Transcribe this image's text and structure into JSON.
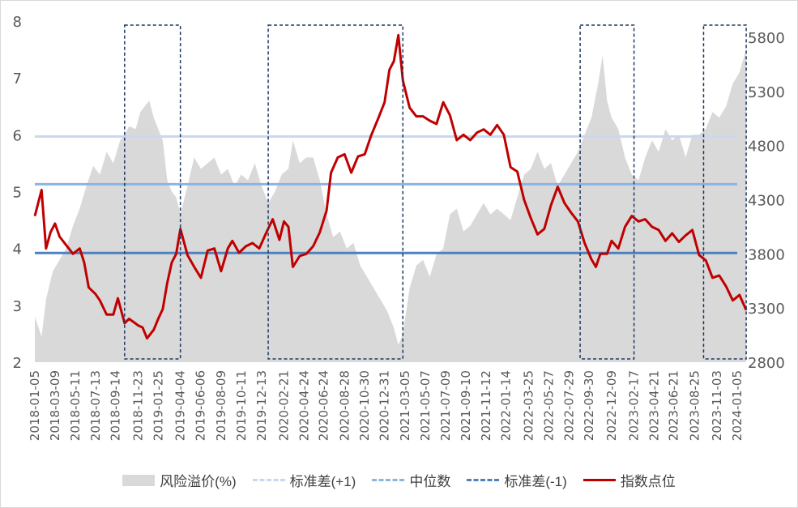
{
  "colors": {
    "area": "#d9d9d9",
    "std_plus": "#c6d9f1",
    "median": "#8db4e2",
    "std_minus": "#4f81bd",
    "index_line": "#c00000",
    "box": "#1f3864",
    "axis_text": "#595959"
  },
  "chart_data": {
    "type": "line",
    "left_axis": {
      "ylim": [
        2,
        8
      ],
      "ticks": [
        "2",
        "3",
        "4",
        "5",
        "6",
        "7",
        "8"
      ]
    },
    "right_axis": {
      "ylim": [
        2800,
        5950
      ],
      "ticks": [
        "2800",
        "3300",
        "3800",
        "4300",
        "4800",
        "5300",
        "5800"
      ]
    },
    "x_ticks": [
      "2018-01-05",
      "2018-03-09",
      "2018-05-11",
      "2018-07-13",
      "2018-09-14",
      "2018-11-23",
      "2019-01-25",
      "2019-04-04",
      "2019-06-06",
      "2019-08-09",
      "2019-10-11",
      "2019-12-13",
      "2020-02-21",
      "2020-04-24",
      "2020-06-24",
      "2020-08-28",
      "2020-10-30",
      "2020-12-31",
      "2021-03-05",
      "2021-05-07",
      "2021-07-09",
      "2021-09-10",
      "2021-11-12",
      "2022-01-14",
      "2022-03-25",
      "2022-05-27",
      "2022-07-29",
      "2022-09-30",
      "2022-12-09",
      "2023-02-17",
      "2023-04-21",
      "2023-06-21",
      "2023-08-25",
      "2023-11-03",
      "2024-01-05"
    ],
    "horizontal_lines": [
      {
        "name": "标准差(+1)",
        "value": 5.97
      },
      {
        "name": "中位数",
        "value": 5.13
      },
      {
        "name": "标准差(-1)",
        "value": 3.92
      }
    ],
    "highlight_windows": [
      {
        "start": "2018-10-12",
        "end": "2019-04-04"
      },
      {
        "start": "2020-01-03",
        "end": "2021-02-26"
      },
      {
        "start": "2022-09-02",
        "end": "2023-02-17"
      },
      {
        "start": "2023-09-22",
        "end": "2024-02-02"
      }
    ],
    "series": [
      {
        "name": "风险溢价(%)",
        "axis": "left",
        "type": "area",
        "points": [
          [
            "2018-01-05",
            2.8
          ],
          [
            "2018-01-26",
            2.45
          ],
          [
            "2018-02-09",
            3.1
          ],
          [
            "2018-03-02",
            3.6
          ],
          [
            "2018-03-23",
            3.8
          ],
          [
            "2018-04-13",
            4.0
          ],
          [
            "2018-05-04",
            4.4
          ],
          [
            "2018-05-25",
            4.7
          ],
          [
            "2018-06-15",
            5.1
          ],
          [
            "2018-07-06",
            5.45
          ],
          [
            "2018-07-27",
            5.3
          ],
          [
            "2018-08-17",
            5.7
          ],
          [
            "2018-09-07",
            5.5
          ],
          [
            "2018-09-28",
            5.9
          ],
          [
            "2018-10-12",
            6.0
          ],
          [
            "2018-10-26",
            6.15
          ],
          [
            "2018-11-16",
            6.1
          ],
          [
            "2018-11-30",
            6.4
          ],
          [
            "2018-12-14",
            6.5
          ],
          [
            "2018-12-28",
            6.6
          ],
          [
            "2019-01-11",
            6.3
          ],
          [
            "2019-01-25",
            6.1
          ],
          [
            "2019-02-08",
            5.9
          ],
          [
            "2019-02-22",
            5.2
          ],
          [
            "2019-03-08",
            5.0
          ],
          [
            "2019-03-22",
            4.9
          ],
          [
            "2019-04-04",
            4.6
          ],
          [
            "2019-04-26",
            5.1
          ],
          [
            "2019-05-17",
            5.6
          ],
          [
            "2019-06-07",
            5.4
          ],
          [
            "2019-06-28",
            5.5
          ],
          [
            "2019-07-19",
            5.6
          ],
          [
            "2019-08-09",
            5.3
          ],
          [
            "2019-08-30",
            5.4
          ],
          [
            "2019-09-20",
            5.1
          ],
          [
            "2019-10-11",
            5.3
          ],
          [
            "2019-11-01",
            5.2
          ],
          [
            "2019-11-22",
            5.5
          ],
          [
            "2019-12-13",
            5.1
          ],
          [
            "2020-01-03",
            4.8
          ],
          [
            "2020-01-24",
            5.0
          ],
          [
            "2020-02-14",
            5.3
          ],
          [
            "2020-03-06",
            5.4
          ],
          [
            "2020-03-20",
            5.9
          ],
          [
            "2020-04-10",
            5.5
          ],
          [
            "2020-05-01",
            5.6
          ],
          [
            "2020-05-22",
            5.6
          ],
          [
            "2020-06-12",
            5.2
          ],
          [
            "2020-07-03",
            4.6
          ],
          [
            "2020-07-24",
            4.2
          ],
          [
            "2020-08-14",
            4.3
          ],
          [
            "2020-09-04",
            4.0
          ],
          [
            "2020-09-25",
            4.1
          ],
          [
            "2020-10-16",
            3.7
          ],
          [
            "2020-11-06",
            3.5
          ],
          [
            "2020-11-27",
            3.3
          ],
          [
            "2020-12-18",
            3.1
          ],
          [
            "2021-01-08",
            2.9
          ],
          [
            "2021-01-29",
            2.6
          ],
          [
            "2021-02-12",
            2.3
          ],
          [
            "2021-02-26",
            2.5
          ],
          [
            "2021-03-19",
            3.3
          ],
          [
            "2021-04-09",
            3.7
          ],
          [
            "2021-04-30",
            3.8
          ],
          [
            "2021-05-21",
            3.5
          ],
          [
            "2021-06-11",
            3.9
          ],
          [
            "2021-07-02",
            4.0
          ],
          [
            "2021-07-23",
            4.6
          ],
          [
            "2021-08-13",
            4.7
          ],
          [
            "2021-09-03",
            4.3
          ],
          [
            "2021-09-24",
            4.4
          ],
          [
            "2021-10-15",
            4.6
          ],
          [
            "2021-11-05",
            4.8
          ],
          [
            "2021-11-26",
            4.6
          ],
          [
            "2021-12-17",
            4.7
          ],
          [
            "2022-01-07",
            4.6
          ],
          [
            "2022-01-28",
            4.5
          ],
          [
            "2022-02-18",
            4.9
          ],
          [
            "2022-03-11",
            5.3
          ],
          [
            "2022-04-01",
            5.4
          ],
          [
            "2022-04-22",
            5.7
          ],
          [
            "2022-05-13",
            5.4
          ],
          [
            "2022-06-03",
            5.5
          ],
          [
            "2022-06-24",
            5.1
          ],
          [
            "2022-07-15",
            5.3
          ],
          [
            "2022-08-05",
            5.5
          ],
          [
            "2022-08-26",
            5.7
          ],
          [
            "2022-09-16",
            6.0
          ],
          [
            "2022-10-07",
            6.3
          ],
          [
            "2022-10-28",
            6.9
          ],
          [
            "2022-11-11",
            7.4
          ],
          [
            "2022-11-25",
            6.6
          ],
          [
            "2022-12-09",
            6.3
          ],
          [
            "2022-12-30",
            6.1
          ],
          [
            "2023-01-20",
            5.6
          ],
          [
            "2023-02-10",
            5.3
          ],
          [
            "2023-03-03",
            5.2
          ],
          [
            "2023-03-24",
            5.6
          ],
          [
            "2023-04-14",
            5.9
          ],
          [
            "2023-05-05",
            5.7
          ],
          [
            "2023-05-26",
            6.1
          ],
          [
            "2023-06-16",
            5.9
          ],
          [
            "2023-07-07",
            6.0
          ],
          [
            "2023-07-28",
            5.6
          ],
          [
            "2023-08-18",
            6.0
          ],
          [
            "2023-09-08",
            6.0
          ],
          [
            "2023-09-29",
            6.1
          ],
          [
            "2023-10-20",
            6.4
          ],
          [
            "2023-11-10",
            6.3
          ],
          [
            "2023-12-01",
            6.5
          ],
          [
            "2023-12-22",
            6.9
          ],
          [
            "2024-01-12",
            7.1
          ],
          [
            "2024-02-02",
            7.5
          ]
        ]
      },
      {
        "name": "指数点位",
        "axis": "right",
        "type": "line",
        "points": [
          [
            "2018-01-05",
            4150
          ],
          [
            "2018-01-26",
            4390
          ],
          [
            "2018-02-09",
            3850
          ],
          [
            "2018-02-23",
            4000
          ],
          [
            "2018-03-09",
            4080
          ],
          [
            "2018-03-23",
            3960
          ],
          [
            "2018-04-13",
            3880
          ],
          [
            "2018-05-04",
            3800
          ],
          [
            "2018-05-25",
            3850
          ],
          [
            "2018-06-08",
            3720
          ],
          [
            "2018-06-22",
            3490
          ],
          [
            "2018-07-13",
            3430
          ],
          [
            "2018-07-27",
            3370
          ],
          [
            "2018-08-17",
            3240
          ],
          [
            "2018-09-07",
            3240
          ],
          [
            "2018-09-21",
            3390
          ],
          [
            "2018-10-12",
            3160
          ],
          [
            "2018-10-26",
            3200
          ],
          [
            "2018-11-09",
            3170
          ],
          [
            "2018-11-23",
            3140
          ],
          [
            "2018-12-07",
            3120
          ],
          [
            "2018-12-21",
            3020
          ],
          [
            "2019-01-11",
            3100
          ],
          [
            "2019-01-25",
            3200
          ],
          [
            "2019-02-08",
            3290
          ],
          [
            "2019-02-22",
            3530
          ],
          [
            "2019-03-08",
            3720
          ],
          [
            "2019-03-22",
            3800
          ],
          [
            "2019-04-04",
            4030
          ],
          [
            "2019-04-26",
            3790
          ],
          [
            "2019-05-17",
            3680
          ],
          [
            "2019-06-07",
            3580
          ],
          [
            "2019-06-28",
            3830
          ],
          [
            "2019-07-19",
            3850
          ],
          [
            "2019-08-09",
            3640
          ],
          [
            "2019-08-30",
            3850
          ],
          [
            "2019-09-13",
            3920
          ],
          [
            "2019-10-04",
            3810
          ],
          [
            "2019-10-25",
            3870
          ],
          [
            "2019-11-15",
            3900
          ],
          [
            "2019-12-06",
            3850
          ],
          [
            "2019-12-27",
            3990
          ],
          [
            "2020-01-17",
            4120
          ],
          [
            "2020-02-07",
            3930
          ],
          [
            "2020-02-21",
            4100
          ],
          [
            "2020-03-06",
            4050
          ],
          [
            "2020-03-20",
            3680
          ],
          [
            "2020-04-10",
            3780
          ],
          [
            "2020-05-01",
            3800
          ],
          [
            "2020-05-22",
            3870
          ],
          [
            "2020-06-12",
            4000
          ],
          [
            "2020-07-03",
            4200
          ],
          [
            "2020-07-17",
            4550
          ],
          [
            "2020-08-07",
            4690
          ],
          [
            "2020-08-28",
            4720
          ],
          [
            "2020-09-18",
            4550
          ],
          [
            "2020-10-09",
            4700
          ],
          [
            "2020-10-30",
            4720
          ],
          [
            "2020-11-20",
            4900
          ],
          [
            "2020-12-11",
            5050
          ],
          [
            "2020-12-31",
            5200
          ],
          [
            "2021-01-15",
            5500
          ],
          [
            "2021-01-29",
            5580
          ],
          [
            "2021-02-12",
            5820
          ],
          [
            "2021-02-26",
            5400
          ],
          [
            "2021-03-19",
            5150
          ],
          [
            "2021-04-09",
            5070
          ],
          [
            "2021-04-30",
            5070
          ],
          [
            "2021-05-21",
            5030
          ],
          [
            "2021-06-11",
            5000
          ],
          [
            "2021-07-02",
            5200
          ],
          [
            "2021-07-23",
            5080
          ],
          [
            "2021-08-13",
            4850
          ],
          [
            "2021-09-03",
            4900
          ],
          [
            "2021-09-24",
            4850
          ],
          [
            "2021-10-15",
            4920
          ],
          [
            "2021-11-05",
            4950
          ],
          [
            "2021-11-26",
            4900
          ],
          [
            "2021-12-17",
            4990
          ],
          [
            "2022-01-07",
            4900
          ],
          [
            "2022-01-28",
            4600
          ],
          [
            "2022-02-18",
            4560
          ],
          [
            "2022-03-11",
            4300
          ],
          [
            "2022-04-01",
            4130
          ],
          [
            "2022-04-22",
            3980
          ],
          [
            "2022-05-13",
            4030
          ],
          [
            "2022-06-03",
            4250
          ],
          [
            "2022-06-24",
            4420
          ],
          [
            "2022-07-15",
            4270
          ],
          [
            "2022-08-05",
            4180
          ],
          [
            "2022-08-26",
            4100
          ],
          [
            "2022-09-16",
            3900
          ],
          [
            "2022-10-07",
            3750
          ],
          [
            "2022-10-21",
            3680
          ],
          [
            "2022-11-04",
            3800
          ],
          [
            "2022-11-25",
            3800
          ],
          [
            "2022-12-09",
            3920
          ],
          [
            "2022-12-30",
            3850
          ],
          [
            "2023-01-20",
            4050
          ],
          [
            "2023-02-10",
            4150
          ],
          [
            "2023-03-03",
            4100
          ],
          [
            "2023-03-24",
            4120
          ],
          [
            "2023-04-14",
            4050
          ],
          [
            "2023-05-05",
            4020
          ],
          [
            "2023-05-26",
            3920
          ],
          [
            "2023-06-16",
            3990
          ],
          [
            "2023-07-07",
            3910
          ],
          [
            "2023-07-28",
            3970
          ],
          [
            "2023-08-18",
            4020
          ],
          [
            "2023-09-08",
            3790
          ],
          [
            "2023-09-29",
            3740
          ],
          [
            "2023-10-20",
            3580
          ],
          [
            "2023-11-10",
            3600
          ],
          [
            "2023-12-01",
            3500
          ],
          [
            "2023-12-22",
            3370
          ],
          [
            "2024-01-12",
            3420
          ],
          [
            "2024-02-02",
            3280
          ]
        ]
      }
    ]
  },
  "legend": {
    "area_label": "风险溢价(%)",
    "std_plus_label": "标准差(+1)",
    "median_label": "中位数",
    "std_minus_label": "标准差(-1)",
    "index_label": "指数点位"
  }
}
